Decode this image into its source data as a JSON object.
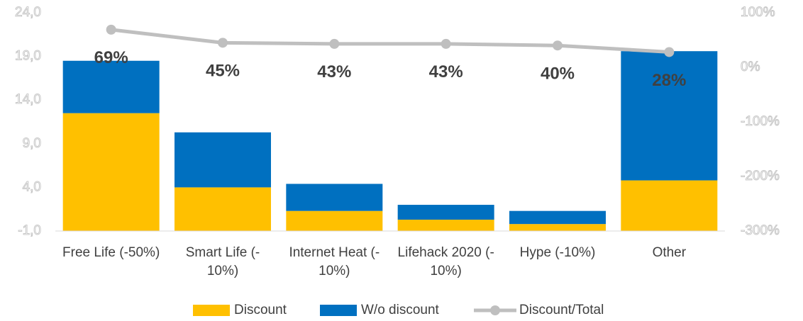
{
  "chart_data": {
    "type": "bar",
    "stacked": true,
    "categories": [
      "Free Life (-50%)",
      "Smart Life (-\n10%)",
      "Internet Heat (-\n10%)",
      "Lifehack 2020 (-\n10%)",
      "Hype (-10%)",
      "Other"
    ],
    "series": [
      {
        "name": "Discount",
        "type": "bar",
        "color": "#FFC000",
        "values": [
          12.5,
          4.0,
          1.3,
          0.3,
          -0.2,
          4.8
        ]
      },
      {
        "name": "W/o discount",
        "type": "bar",
        "color": "#0070C0",
        "values": [
          6.0,
          6.3,
          3.1,
          1.7,
          1.5,
          14.8
        ]
      },
      {
        "name": "Discount/Total",
        "type": "line",
        "axis": "y2",
        "color": "#BFBFBF",
        "values": [
          69,
          45,
          43,
          43,
          40,
          28
        ],
        "value_labels": [
          "69%",
          "45%",
          "43%",
          "43%",
          "40%",
          "28%"
        ]
      }
    ],
    "ylim": [
      -1,
      24
    ],
    "yticks": [
      {
        "value": -1,
        "label": "-1,0"
      },
      {
        "value": 4,
        "label": "4,0"
      },
      {
        "value": 9,
        "label": "9,0"
      },
      {
        "value": 14,
        "label": "14,0"
      },
      {
        "value": 19,
        "label": "19,0"
      },
      {
        "value": 24,
        "label": "24,0"
      }
    ],
    "y2lim": [
      -300,
      100
    ],
    "y2ticks": [
      {
        "value": -300,
        "label": "-300%"
      },
      {
        "value": -200,
        "label": "-200%"
      },
      {
        "value": -100,
        "label": "-100%"
      },
      {
        "value": 0,
        "label": "0%"
      },
      {
        "value": 100,
        "label": "100%"
      }
    ],
    "grid": false,
    "legend": "bottom"
  }
}
